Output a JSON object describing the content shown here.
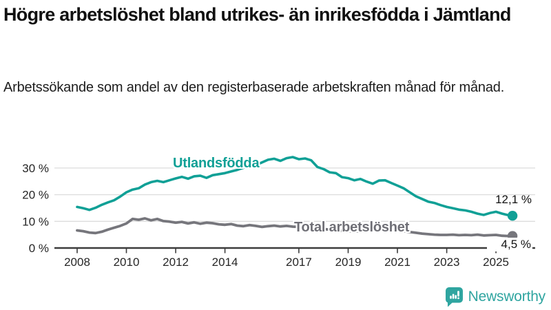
{
  "header": {
    "title": "Högre arbetslöshet bland utrikes- än inrikesfödda i Jämtland",
    "subtitle": "Arbetssökande som andel av den registerbaserade arbetskraften månad för månad."
  },
  "chart_data": {
    "type": "line",
    "title": "Högre arbetslöshet bland utrikes- än inrikesfödda i Jämtland",
    "subtitle": "Arbetssökande som andel av den registerbaserade arbetskraften månad för månad.",
    "xlabel": "",
    "ylabel": "",
    "xlim": [
      2007.1,
      2026.5
    ],
    "ylim": [
      0,
      37
    ],
    "grid": "horizontal",
    "legend_position": "inline-labels",
    "x_ticks": [
      "2008",
      "2010",
      "2012",
      "2014",
      "2017",
      "2019",
      "2021",
      "2023",
      "2025"
    ],
    "y_ticks": [
      {
        "value": 0,
        "label": "0 %"
      },
      {
        "value": 10,
        "label": "10 %"
      },
      {
        "value": 20,
        "label": "20 %"
      },
      {
        "value": 30,
        "label": "30 %"
      }
    ],
    "series": [
      {
        "name": "Utlandsfödda",
        "color": "#10a096",
        "end_label": "12,1 %",
        "end_value": 12.1,
        "points": [
          [
            2008.0,
            15.4
          ],
          [
            2008.25,
            14.9
          ],
          [
            2008.5,
            14.3
          ],
          [
            2008.75,
            15.1
          ],
          [
            2009.0,
            16.2
          ],
          [
            2009.25,
            17.1
          ],
          [
            2009.5,
            17.9
          ],
          [
            2009.75,
            19.3
          ],
          [
            2010.0,
            20.9
          ],
          [
            2010.25,
            21.9
          ],
          [
            2010.5,
            22.4
          ],
          [
            2010.75,
            23.8
          ],
          [
            2011.0,
            24.7
          ],
          [
            2011.25,
            25.2
          ],
          [
            2011.5,
            24.7
          ],
          [
            2011.75,
            25.4
          ],
          [
            2012.0,
            26.1
          ],
          [
            2012.25,
            26.7
          ],
          [
            2012.5,
            26.0
          ],
          [
            2012.75,
            26.9
          ],
          [
            2013.0,
            27.1
          ],
          [
            2013.25,
            26.3
          ],
          [
            2013.5,
            27.3
          ],
          [
            2013.75,
            27.7
          ],
          [
            2014.0,
            28.1
          ],
          [
            2014.25,
            28.7
          ],
          [
            2014.5,
            29.3
          ],
          [
            2014.75,
            30.1
          ],
          [
            2015.0,
            30.7
          ],
          [
            2015.25,
            31.1
          ],
          [
            2015.5,
            32.1
          ],
          [
            2015.75,
            33.1
          ],
          [
            2016.0,
            33.5
          ],
          [
            2016.25,
            32.7
          ],
          [
            2016.5,
            33.7
          ],
          [
            2016.75,
            34.1
          ],
          [
            2017.0,
            33.3
          ],
          [
            2017.25,
            33.6
          ],
          [
            2017.5,
            32.9
          ],
          [
            2017.75,
            30.4
          ],
          [
            2018.0,
            29.6
          ],
          [
            2018.25,
            28.4
          ],
          [
            2018.5,
            28.1
          ],
          [
            2018.75,
            26.6
          ],
          [
            2019.0,
            26.2
          ],
          [
            2019.25,
            25.4
          ],
          [
            2019.5,
            25.9
          ],
          [
            2019.75,
            24.9
          ],
          [
            2020.0,
            24.1
          ],
          [
            2020.25,
            25.3
          ],
          [
            2020.5,
            25.4
          ],
          [
            2020.75,
            24.4
          ],
          [
            2021.0,
            23.4
          ],
          [
            2021.25,
            22.4
          ],
          [
            2021.5,
            20.9
          ],
          [
            2021.75,
            19.4
          ],
          [
            2022.0,
            18.4
          ],
          [
            2022.25,
            17.4
          ],
          [
            2022.5,
            16.9
          ],
          [
            2022.75,
            16.1
          ],
          [
            2023.0,
            15.4
          ],
          [
            2023.25,
            14.9
          ],
          [
            2023.5,
            14.4
          ],
          [
            2023.75,
            14.1
          ],
          [
            2024.0,
            13.6
          ],
          [
            2024.25,
            12.9
          ],
          [
            2024.5,
            12.4
          ],
          [
            2024.75,
            13.1
          ],
          [
            2025.0,
            13.6
          ],
          [
            2025.25,
            12.9
          ],
          [
            2025.5,
            12.3
          ],
          [
            2025.67,
            12.1
          ]
        ]
      },
      {
        "name": "Total arbetslöshet",
        "color": "#76767c",
        "end_label": "4,5 %",
        "end_value": 4.5,
        "points": [
          [
            2008.0,
            6.6
          ],
          [
            2008.25,
            6.3
          ],
          [
            2008.5,
            5.8
          ],
          [
            2008.75,
            5.6
          ],
          [
            2009.0,
            6.1
          ],
          [
            2009.25,
            6.9
          ],
          [
            2009.5,
            7.6
          ],
          [
            2009.75,
            8.3
          ],
          [
            2010.0,
            9.2
          ],
          [
            2010.25,
            10.9
          ],
          [
            2010.5,
            10.6
          ],
          [
            2010.75,
            11.1
          ],
          [
            2011.0,
            10.4
          ],
          [
            2011.25,
            10.9
          ],
          [
            2011.5,
            10.1
          ],
          [
            2011.75,
            9.9
          ],
          [
            2012.0,
            9.5
          ],
          [
            2012.25,
            9.8
          ],
          [
            2012.5,
            9.2
          ],
          [
            2012.75,
            9.6
          ],
          [
            2013.0,
            9.1
          ],
          [
            2013.25,
            9.5
          ],
          [
            2013.5,
            9.3
          ],
          [
            2013.75,
            8.9
          ],
          [
            2014.0,
            8.7
          ],
          [
            2014.25,
            9.0
          ],
          [
            2014.5,
            8.4
          ],
          [
            2014.75,
            8.2
          ],
          [
            2015.0,
            8.6
          ],
          [
            2015.25,
            8.3
          ],
          [
            2015.5,
            7.9
          ],
          [
            2015.75,
            8.2
          ],
          [
            2016.0,
            8.4
          ],
          [
            2016.25,
            8.1
          ],
          [
            2016.5,
            8.3
          ],
          [
            2016.75,
            8.0
          ],
          [
            2017.0,
            7.9
          ],
          [
            2017.25,
            7.7
          ],
          [
            2017.5,
            7.5
          ],
          [
            2017.75,
            7.3
          ],
          [
            2018.0,
            7.1
          ],
          [
            2018.25,
            6.9
          ],
          [
            2018.5,
            6.6
          ],
          [
            2018.75,
            6.4
          ],
          [
            2019.0,
            6.3
          ],
          [
            2019.25,
            6.2
          ],
          [
            2019.5,
            6.2
          ],
          [
            2019.75,
            6.3
          ],
          [
            2020.0,
            6.6
          ],
          [
            2020.25,
            7.6
          ],
          [
            2020.5,
            7.3
          ],
          [
            2020.75,
            7.0
          ],
          [
            2021.0,
            6.6
          ],
          [
            2021.25,
            6.3
          ],
          [
            2021.5,
            6.0
          ],
          [
            2021.75,
            5.7
          ],
          [
            2022.0,
            5.4
          ],
          [
            2022.25,
            5.2
          ],
          [
            2022.5,
            5.0
          ],
          [
            2022.75,
            4.9
          ],
          [
            2023.0,
            4.9
          ],
          [
            2023.25,
            5.0
          ],
          [
            2023.5,
            4.8
          ],
          [
            2023.75,
            4.9
          ],
          [
            2024.0,
            4.8
          ],
          [
            2024.25,
            5.0
          ],
          [
            2024.5,
            4.7
          ],
          [
            2024.75,
            4.8
          ],
          [
            2025.0,
            4.9
          ],
          [
            2025.25,
            4.6
          ],
          [
            2025.5,
            4.5
          ],
          [
            2025.67,
            4.5
          ]
        ]
      }
    ]
  },
  "footer": {
    "brand": "Newsworthy",
    "brand_color": "#2fa5a0"
  }
}
